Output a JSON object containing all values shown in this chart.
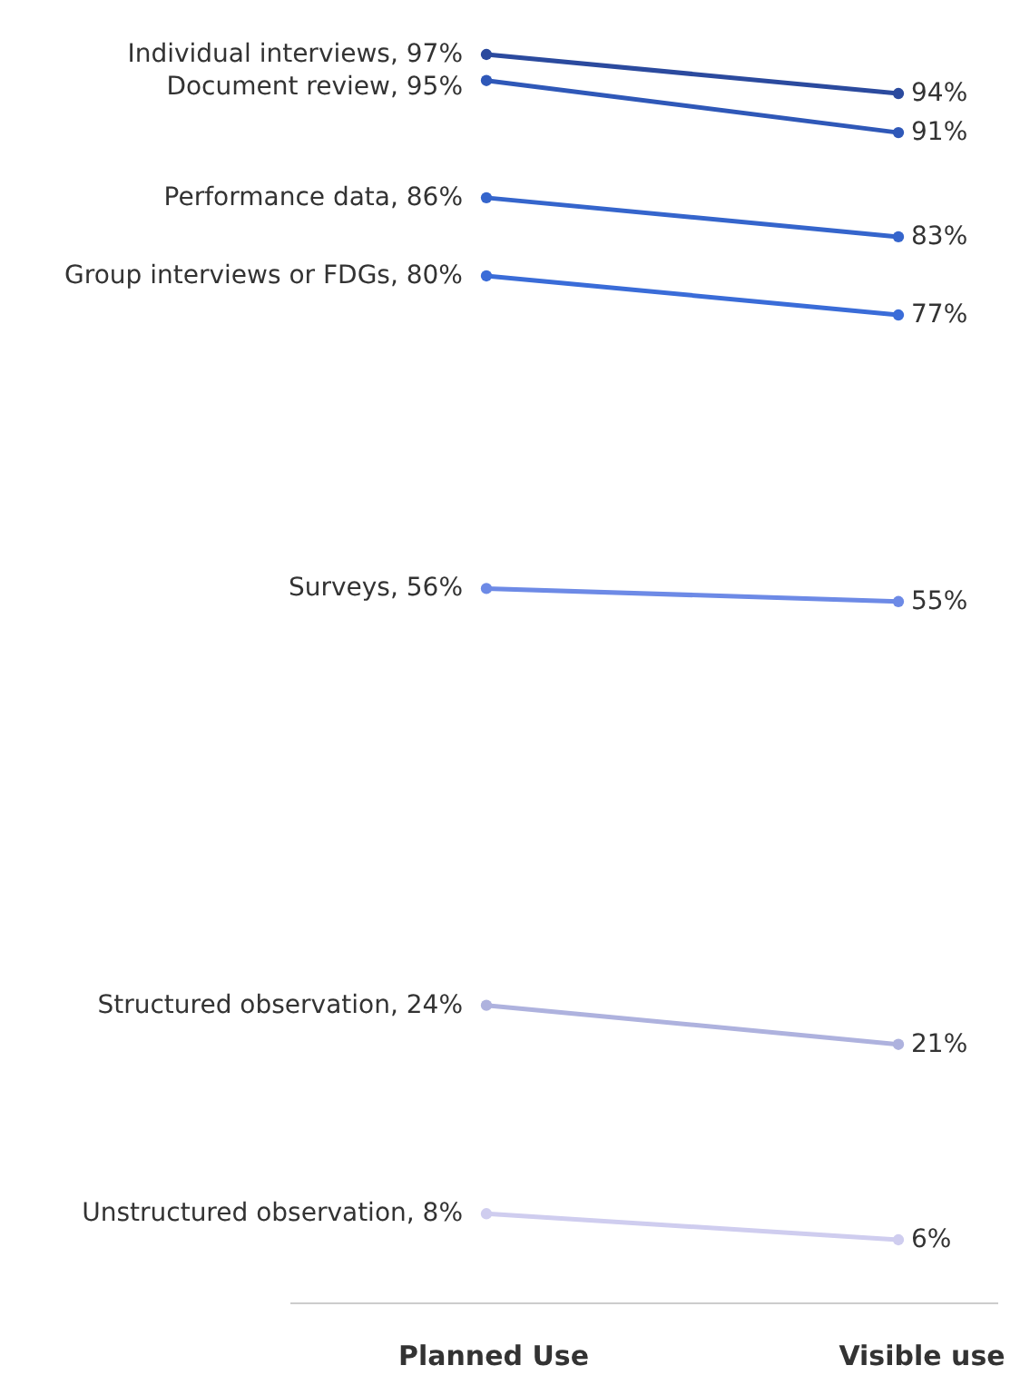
{
  "chart_data": {
    "type": "line",
    "categories": [
      "Planned Use",
      "Visible use"
    ],
    "marker": "circle",
    "series": [
      {
        "color": "#2b4a9e",
        "values": [
          97,
          94
        ],
        "value_labels": [
          "Individual interviews, 97%",
          "94%"
        ]
      },
      {
        "color": "#2f58b8",
        "values": [
          95,
          91
        ],
        "value_labels": [
          "Document review, 95%",
          "91%"
        ]
      },
      {
        "color": "#3565cc",
        "values": [
          86,
          83
        ],
        "value_labels": [
          "Performance data, 86%",
          "83%"
        ]
      },
      {
        "color": "#3a6cd8",
        "values": [
          80,
          77
        ],
        "value_labels": [
          "Group interviews or FDGs, 80%",
          "77%"
        ]
      },
      {
        "color": "#6d8ae6",
        "values": [
          56,
          55
        ],
        "value_labels": [
          "Surveys, 56%",
          "55%"
        ]
      },
      {
        "color": "#aeb2de",
        "values": [
          24,
          21
        ],
        "value_labels": [
          "Structured observation, 24%",
          "21%"
        ]
      },
      {
        "color": "#cfcdef",
        "values": [
          8,
          6
        ],
        "value_labels": [
          "Unstructured observation, 8%",
          "6%"
        ]
      }
    ]
  }
}
